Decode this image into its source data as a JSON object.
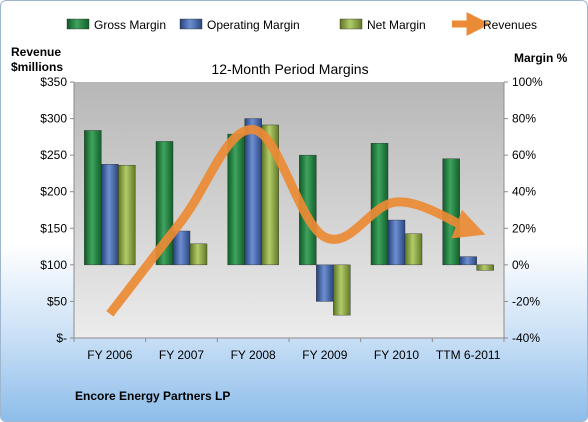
{
  "chart_data": {
    "type": "bar",
    "title": "12-Month Period Margins",
    "ylabel_left": [
      "Revenue",
      "$millions"
    ],
    "ylabel_right": "Margin %",
    "categories": [
      "FY 2006",
      "FY 2007",
      "FY 2008",
      "FY 2009",
      "FY 2010",
      "TTM 6-2011"
    ],
    "left_axis": {
      "min": 0,
      "max": 350,
      "step": 50,
      "tick_labels": [
        "$-",
        "$50",
        "$100",
        "$150",
        "$200",
        "$250",
        "$300",
        "$350"
      ]
    },
    "right_axis": {
      "min": -40,
      "max": 100,
      "step": 20,
      "tick_labels": [
        "-40%",
        "-20%",
        "0%",
        "20%",
        "40%",
        "60%",
        "80%",
        "100%"
      ]
    },
    "series": [
      {
        "name": "Gross Margin",
        "axis": "right",
        "kind": "bar",
        "color": "#1e7a3c",
        "values": [
          73.5,
          67.5,
          71.5,
          60,
          66.5,
          58
        ]
      },
      {
        "name": "Operating Margin",
        "axis": "right",
        "kind": "bar",
        "color": "#3f63a8",
        "values": [
          55,
          18.5,
          80,
          -20,
          24.5,
          4.5
        ]
      },
      {
        "name": "Net Margin",
        "axis": "right",
        "kind": "bar",
        "color": "#8aa640",
        "values": [
          54.5,
          11.5,
          76.5,
          -27.5,
          17,
          -3
        ]
      },
      {
        "name": "Revenues",
        "axis": "left",
        "kind": "line",
        "color": "#ec8b35",
        "values": [
          33,
          160,
          285,
          138,
          186,
          150
        ]
      }
    ],
    "legend_position": "top",
    "grid": false
  },
  "footer": {
    "company": "Encore Energy Partners LP"
  }
}
